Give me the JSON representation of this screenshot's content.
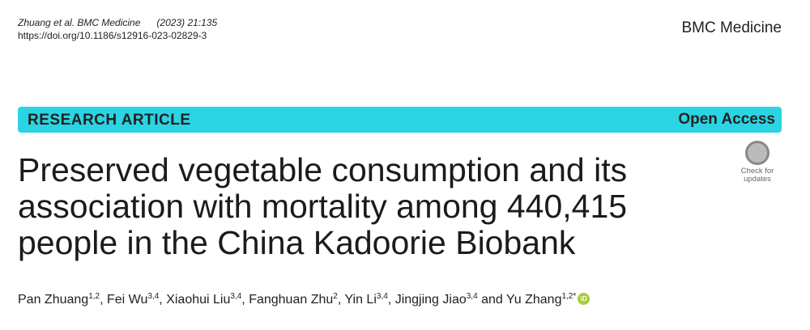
{
  "header": {
    "authors_short": "Zhuang et al. BMC Medicine",
    "citation": "(2023) 21:135",
    "doi": "https://doi.org/10.1186/s12916-023-02829-3",
    "journal": "BMC Medicine"
  },
  "banner": {
    "article_type": "RESEARCH ARTICLE",
    "access": "Open Access"
  },
  "badge": {
    "line1": "Check for",
    "line2": "updates"
  },
  "title_lines": [
    "Preserved vegetable consumption and its",
    "association with mortality among 440,415",
    "people in the China Kadoorie Biobank"
  ],
  "authors": [
    {
      "name": "Pan Zhuang",
      "affiliations": "1,2"
    },
    {
      "name": "Fei Wu",
      "affiliations": "3,4"
    },
    {
      "name": "Xiaohui Liu",
      "affiliations": "3,4"
    },
    {
      "name": "Fanghuan Zhu",
      "affiliations": "2"
    },
    {
      "name": "Yin Li",
      "affiliations": "3,4"
    },
    {
      "name": "Jingjing Jiao",
      "affiliations": "3,4"
    },
    {
      "name": "Yu Zhang",
      "affiliations": "1,2",
      "corresponding": "*"
    }
  ],
  "separator": ",",
  "conjunction": "and",
  "orcid_icon": "iD"
}
